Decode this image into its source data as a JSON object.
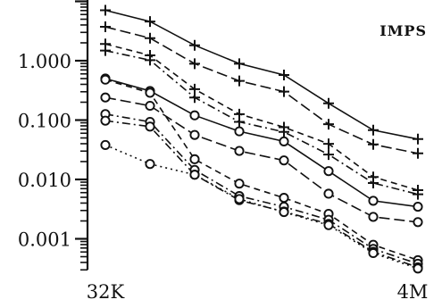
{
  "chart_data": {
    "type": "line",
    "title": "",
    "xlabel": "",
    "ylabel": "",
    "y_scale": "log",
    "ylim": [
      0.0003,
      12
    ],
    "x_tick_labels": [
      "32K",
      "4M"
    ],
    "x": [
      1,
      2,
      3,
      4,
      5,
      6,
      7,
      8
    ],
    "y_ticks": [
      {
        "value": 1,
        "label": "1.000"
      },
      {
        "value": 0.1,
        "label": "0.100"
      },
      {
        "value": 0.01,
        "label": "0.010"
      },
      {
        "value": 0.001,
        "label": "0.001"
      }
    ],
    "annotation": "IMPS",
    "colors": {
      "ink": "#111111"
    },
    "series": [
      {
        "marker": "plus",
        "dash": "solid",
        "values": [
          7.08,
          4.57,
          1.82,
          0.891,
          0.575,
          0.191,
          0.0676,
          0.0479
        ]
      },
      {
        "marker": "plus",
        "dash": "longdash",
        "values": [
          3.72,
          2.4,
          0.891,
          0.457,
          0.302,
          0.0851,
          0.0389,
          0.0275
        ]
      },
      {
        "marker": "plus",
        "dash": "dash",
        "values": [
          1.91,
          1.23,
          0.331,
          0.126,
          0.0759,
          0.0398,
          0.011,
          0.00661
        ]
      },
      {
        "marker": "plus",
        "dash": "dashdot",
        "values": [
          1.48,
          1.02,
          0.24,
          0.0933,
          0.0631,
          0.0263,
          0.00871,
          0.00562
        ]
      },
      {
        "marker": "circle",
        "dash": "solid",
        "values": [
          0.501,
          0.309,
          0.12,
          0.0646,
          0.0437,
          0.0138,
          0.00437,
          0.00347
        ]
      },
      {
        "marker": "circle",
        "dash": "longdash",
        "values": [
          0.24,
          0.174,
          0.0562,
          0.0302,
          0.0209,
          0.00575,
          0.00234,
          0.00191
        ]
      },
      {
        "marker": "circle",
        "dash": "dash",
        "values": [
          0.479,
          0.288,
          0.0219,
          0.00851,
          0.0049,
          0.00263,
          0.000794,
          0.000437
        ]
      },
      {
        "marker": "circle",
        "dash": "dashdot",
        "values": [
          0.126,
          0.0933,
          0.0145,
          0.00525,
          0.00347,
          0.00209,
          0.000676,
          0.00038
        ]
      },
      {
        "marker": "circle",
        "dash": "dashdot",
        "values": [
          0.0977,
          0.0776,
          0.012,
          0.00447,
          0.00288,
          0.00178,
          0.000603,
          0.000331
        ]
      },
      {
        "marker": "circle",
        "dash": "dotted",
        "values": [
          0.038,
          0.0182,
          0.012,
          0.00468,
          0.00282,
          0.0017,
          0.000575,
          0.000316
        ]
      }
    ]
  }
}
